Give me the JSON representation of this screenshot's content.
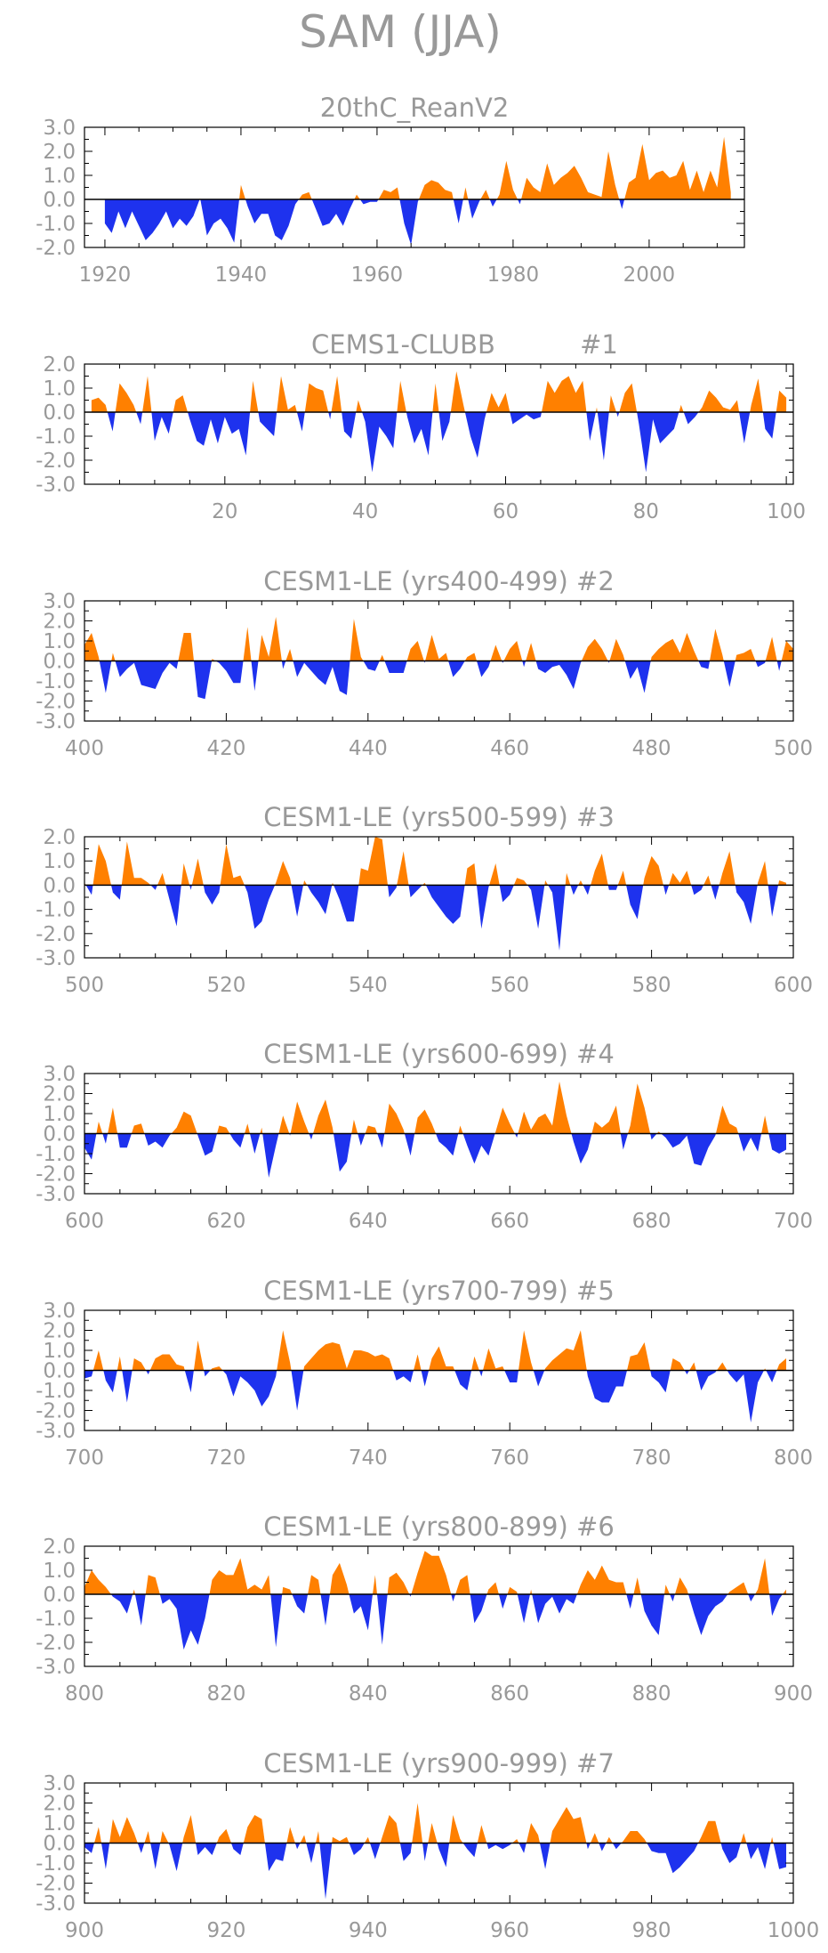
{
  "title": "SAM (JJA)",
  "colors": {
    "positive": "#ff8000",
    "negative": "#1e32ee",
    "axis": "#000000",
    "text": "#999999"
  },
  "chart_data": [
    {
      "type": "area",
      "title": "20thC_ReanV2",
      "ylim": [
        -2.0,
        3.0
      ],
      "yticks": [
        "3.0",
        "2.0",
        "1.0",
        "0.0",
        "-1.0",
        "-2.0"
      ],
      "xlim": [
        1917,
        2014
      ],
      "xticks": [
        1920,
        1940,
        1960,
        1980,
        2000
      ],
      "x_start": 1920,
      "values": [
        -1.0,
        -1.4,
        -0.5,
        -1.2,
        -0.5,
        -1.1,
        -1.7,
        -1.4,
        -1.0,
        -0.5,
        -1.2,
        -0.8,
        -1.1,
        -0.7,
        0.05,
        -1.5,
        -1.0,
        -0.8,
        -1.2,
        -1.8,
        0.6,
        -0.3,
        -1.0,
        -0.6,
        -0.6,
        -1.5,
        -1.7,
        -1.1,
        -0.2,
        0.2,
        0.3,
        -0.4,
        -1.1,
        -1.0,
        -0.6,
        -1.1,
        -0.4,
        0.2,
        -0.2,
        -0.1,
        -0.1,
        0.4,
        0.3,
        0.5,
        -1.0,
        -1.9,
        -0.1,
        0.6,
        0.8,
        0.7,
        0.4,
        0.3,
        -1.0,
        0.5,
        -0.8,
        -0.1,
        0.4,
        -0.3,
        0.2,
        1.6,
        0.4,
        -0.2,
        0.9,
        0.5,
        0.3,
        1.5,
        0.6,
        0.9,
        1.1,
        1.4,
        0.9,
        0.3,
        0.2,
        0.1,
        2.0,
        0.6,
        -0.4,
        0.7,
        0.9,
        2.3,
        0.8,
        1.1,
        1.2,
        0.9,
        1.0,
        1.6,
        0.4,
        1.2,
        0.3,
        1.2,
        0.5,
        2.6,
        0.3
      ],
      "positive_color": "#ff8000",
      "negative_color": "#1e32ee"
    },
    {
      "type": "area",
      "title": "CEMS1-CLUBB",
      "subtitle": "#1",
      "ylim": [
        -3.0,
        2.0
      ],
      "yticks": [
        "2.0",
        "1.0",
        "0.0",
        "-1.0",
        "-2.0",
        "-3.0"
      ],
      "xlim": [
        0,
        101
      ],
      "xticks": [
        20,
        40,
        60,
        80,
        100
      ],
      "x_start": 1,
      "values": [
        0.5,
        0.6,
        0.3,
        -0.8,
        1.2,
        0.8,
        0.3,
        -0.5,
        1.5,
        -1.2,
        -0.2,
        -0.9,
        0.5,
        0.7,
        -0.3,
        -1.2,
        -1.4,
        -0.3,
        -1.3,
        -0.2,
        -0.9,
        -0.7,
        -1.8,
        1.3,
        -0.4,
        -0.7,
        -1.0,
        1.5,
        0.1,
        0.3,
        -0.8,
        1.2,
        1.0,
        0.9,
        -0.3,
        1.5,
        -0.8,
        -1.1,
        0.5,
        -0.4,
        -2.5,
        -0.6,
        -1.0,
        -1.5,
        1.3,
        -0.2,
        -1.3,
        -0.7,
        -1.8,
        1.2,
        -1.2,
        -0.4,
        1.7,
        0.3,
        -1.0,
        -1.9,
        -0.3,
        0.8,
        0.2,
        0.8,
        -0.5,
        -0.3,
        -0.1,
        -0.3,
        -0.2,
        1.3,
        0.8,
        1.3,
        1.5,
        0.8,
        1.3,
        -1.2,
        0.2,
        -2.0,
        0.7,
        -0.2,
        0.8,
        1.2,
        -0.5,
        -2.5,
        -0.3,
        -1.3,
        -1.0,
        -0.7,
        0.3,
        -0.5,
        -0.2,
        0.2,
        0.9,
        0.6,
        0.2,
        0.1,
        0.5,
        -1.3,
        0.3,
        1.4,
        -0.7,
        -1.1,
        0.9,
        0.6
      ],
      "positive_color": "#ff8000",
      "negative_color": "#1e32ee"
    },
    {
      "type": "area",
      "title": "CESM1-LE (yrs400-499) #2",
      "ylim": [
        -3.0,
        3.0
      ],
      "yticks": [
        "3.0",
        "2.0",
        "1.0",
        "0.0",
        "-1.0",
        "-2.0",
        "-3.0"
      ],
      "xlim": [
        400,
        500
      ],
      "xticks": [
        400,
        420,
        440,
        460,
        480,
        500
      ],
      "x_start": 400,
      "values": [
        0.8,
        1.4,
        0.2,
        -1.6,
        0.4,
        -0.8,
        -0.4,
        -0.1,
        -1.2,
        -1.3,
        -1.4,
        -0.6,
        -0.1,
        -0.4,
        1.4,
        1.4,
        -1.8,
        -1.9,
        0.1,
        -0.1,
        -0.5,
        -1.1,
        -1.1,
        1.7,
        -1.5,
        1.3,
        0.2,
        2.2,
        -0.4,
        0.6,
        -0.8,
        -0.1,
        -0.5,
        -0.9,
        -1.2,
        -0.3,
        -1.5,
        -1.7,
        2.1,
        0.2,
        -0.4,
        -0.5,
        0.3,
        -0.6,
        -0.6,
        -0.6,
        0.6,
        1.0,
        -0.1,
        1.3,
        0.1,
        0.4,
        -0.8,
        -0.4,
        0.2,
        0.4,
        -0.8,
        -0.3,
        0.8,
        -0.1,
        0.6,
        1.0,
        -0.3,
        0.9,
        -0.4,
        -0.6,
        -0.3,
        -0.2,
        -0.7,
        -1.4,
        -0.1,
        0.7,
        1.1,
        0.6,
        -0.1,
        1.1,
        0.3,
        -0.9,
        -0.3,
        -1.6,
        0.2,
        0.6,
        0.9,
        1.1,
        0.4,
        1.4,
        0.5,
        -0.3,
        -0.4,
        1.6,
        0.3,
        -1.3,
        0.3,
        0.4,
        0.6,
        -0.3,
        -0.1,
        1.2,
        -0.5,
        1.0,
        0.6
      ],
      "positive_color": "#ff8000",
      "negative_color": "#1e32ee"
    },
    {
      "type": "area",
      "title": "CESM1-LE (yrs500-599) #3",
      "ylim": [
        -3.0,
        2.0
      ],
      "yticks": [
        "2.0",
        "1.0",
        "0.0",
        "-1.0",
        "-2.0",
        "-3.0"
      ],
      "xlim": [
        500,
        600
      ],
      "xticks": [
        500,
        520,
        540,
        560,
        580,
        600
      ],
      "x_start": 500,
      "values": [
        0.1,
        -0.4,
        1.7,
        1.0,
        -0.3,
        -0.6,
        1.8,
        0.3,
        0.3,
        0.1,
        -0.2,
        0.5,
        -0.6,
        -1.7,
        0.9,
        -0.2,
        1.1,
        -0.3,
        -0.8,
        -0.3,
        1.7,
        0.3,
        0.4,
        -0.3,
        -1.8,
        -1.5,
        -0.6,
        0.1,
        1.0,
        0.3,
        -1.3,
        0.2,
        -0.3,
        -0.7,
        -1.2,
        0.1,
        -0.6,
        -1.5,
        -1.5,
        0.7,
        0.6,
        2.0,
        1.9,
        -0.5,
        -0.1,
        1.4,
        -0.5,
        -0.2,
        0.1,
        -0.5,
        -0.9,
        -1.3,
        -1.6,
        -1.3,
        0.7,
        0.9,
        -1.8,
        -0.1,
        0.9,
        -0.7,
        -0.4,
        0.3,
        0.2,
        -0.2,
        -1.8,
        0.2,
        -0.3,
        -2.7,
        0.5,
        -0.4,
        0.2,
        -0.4,
        0.6,
        1.3,
        -0.2,
        -0.2,
        0.6,
        -0.8,
        -1.4,
        0.3,
        1.2,
        0.8,
        -0.4,
        0.5,
        0.1,
        0.6,
        -0.4,
        -0.2,
        0.4,
        -0.6,
        0.5,
        1.4,
        -0.3,
        -0.7,
        -1.6,
        0.1,
        1.0,
        -1.3,
        0.2,
        0.1
      ],
      "positive_color": "#ff8000",
      "negative_color": "#1e32ee"
    },
    {
      "type": "area",
      "title": "CESM1-LE (yrs600-699) #4",
      "ylim": [
        -3.0,
        3.0
      ],
      "yticks": [
        "3.0",
        "2.0",
        "1.0",
        "0.0",
        "-1.0",
        "-2.0",
        "-3.0"
      ],
      "xlim": [
        600,
        700
      ],
      "xticks": [
        600,
        620,
        640,
        660,
        680,
        700
      ],
      "x_start": 600,
      "values": [
        -0.7,
        -1.3,
        0.6,
        -0.5,
        1.3,
        -0.7,
        -0.7,
        0.4,
        0.5,
        -0.6,
        -0.4,
        -0.7,
        -0.1,
        0.3,
        1.1,
        0.9,
        -0.1,
        -1.1,
        -0.9,
        0.4,
        0.3,
        -0.3,
        -0.7,
        0.5,
        -1.0,
        0.3,
        -2.2,
        -0.6,
        0.9,
        -0.1,
        1.6,
        0.6,
        -0.3,
        0.9,
        1.7,
        0.3,
        -1.9,
        -1.4,
        0.7,
        -0.6,
        0.4,
        0.3,
        -0.7,
        1.5,
        1.0,
        0.2,
        -1.1,
        0.8,
        1.2,
        0.5,
        -0.4,
        -0.7,
        -1.1,
        0.4,
        -0.6,
        -1.5,
        -0.6,
        -1.1,
        0.1,
        1.3,
        0.5,
        -0.2,
        1.1,
        0.2,
        0.8,
        1.0,
        0.4,
        2.6,
        0.9,
        -0.4,
        -1.5,
        -0.8,
        0.6,
        0.3,
        0.6,
        1.4,
        -0.8,
        0.4,
        2.5,
        1.3,
        -0.3,
        0.1,
        -0.2,
        -0.7,
        -0.5,
        -0.1,
        -1.5,
        -1.6,
        -0.7,
        -0.1,
        1.4,
        0.5,
        0.3,
        -0.9,
        -0.2,
        -0.9,
        0.9,
        -0.8,
        -1.0,
        -0.8
      ],
      "positive_color": "#ff8000",
      "negative_color": "#1e32ee"
    },
    {
      "type": "area",
      "title": "CESM1-LE (yrs700-799) #5",
      "ylim": [
        -3.0,
        3.0
      ],
      "yticks": [
        "3.0",
        "2.0",
        "1.0",
        "0.0",
        "-1.0",
        "-2.0",
        "-3.0"
      ],
      "xlim": [
        700,
        800
      ],
      "xticks": [
        700,
        720,
        740,
        760,
        780,
        800
      ],
      "x_start": 700,
      "values": [
        -0.4,
        -0.3,
        1.0,
        -0.5,
        -1.1,
        0.7,
        -1.6,
        0.6,
        0.4,
        -0.2,
        0.6,
        0.8,
        0.8,
        0.3,
        0.2,
        -1.1,
        1.5,
        -0.3,
        0.1,
        0.2,
        -0.2,
        -1.3,
        -0.3,
        -0.6,
        -1.0,
        -1.8,
        -1.3,
        -0.3,
        2.0,
        0.4,
        -2.0,
        0.2,
        0.6,
        1.0,
        1.3,
        1.4,
        1.3,
        0.1,
        1.0,
        1.0,
        0.9,
        0.7,
        0.8,
        0.6,
        -0.5,
        -0.3,
        -0.6,
        0.8,
        -0.8,
        0.6,
        1.2,
        0.2,
        0.2,
        -0.7,
        -1.0,
        0.7,
        -0.3,
        1.1,
        0.1,
        0.2,
        -0.6,
        -0.6,
        2.0,
        0.4,
        -0.8,
        0.1,
        0.5,
        0.8,
        1.1,
        1.0,
        2.0,
        -0.3,
        -1.4,
        -1.6,
        -1.6,
        -0.8,
        -0.8,
        0.7,
        0.8,
        1.4,
        -0.3,
        -0.6,
        -1.1,
        0.6,
        0.4,
        -0.2,
        0.4,
        -1.0,
        -0.3,
        -0.1,
        0.4,
        -0.2,
        -0.6,
        -0.2,
        -2.6,
        -0.6,
        0.1,
        -0.6,
        0.3,
        0.6
      ],
      "positive_color": "#ff8000",
      "negative_color": "#1e32ee"
    },
    {
      "type": "area",
      "title": "CESM1-LE (yrs800-899) #6",
      "ylim": [
        -3.0,
        2.0
      ],
      "yticks": [
        "2.0",
        "1.0",
        "0.0",
        "-1.0",
        "-2.0",
        "-3.0"
      ],
      "xlim": [
        800,
        900
      ],
      "xticks": [
        800,
        820,
        840,
        860,
        880,
        900
      ],
      "x_start": 800,
      "values": [
        0.3,
        1.0,
        0.6,
        0.3,
        -0.1,
        -0.3,
        -0.8,
        0.2,
        -1.3,
        0.8,
        0.7,
        -0.4,
        -0.2,
        -0.6,
        -2.3,
        -1.5,
        -2.1,
        -1.0,
        0.6,
        1.0,
        0.8,
        0.8,
        1.5,
        0.2,
        0.4,
        0.2,
        0.8,
        -2.2,
        0.3,
        0.2,
        -0.5,
        -0.8,
        0.8,
        0.6,
        -1.3,
        0.8,
        1.3,
        0.4,
        -0.8,
        -0.5,
        -1.5,
        0.8,
        -2.1,
        0.7,
        0.9,
        0.5,
        -0.1,
        0.9,
        1.8,
        1.6,
        1.6,
        0.8,
        -0.3,
        0.6,
        0.8,
        -1.2,
        -0.7,
        0.2,
        0.5,
        -0.6,
        0.3,
        0.1,
        -1.2,
        0.2,
        -1.2,
        -0.4,
        -0.1,
        -0.8,
        -0.2,
        -0.4,
        0.4,
        1.0,
        0.6,
        1.2,
        0.6,
        0.5,
        0.5,
        -0.6,
        0.7,
        -0.7,
        -1.3,
        -1.7,
        0.4,
        -0.3,
        0.7,
        0.2,
        -0.8,
        -1.7,
        -0.9,
        -0.5,
        -0.3,
        0.1,
        0.3,
        0.5,
        -0.3,
        0.2,
        1.5,
        -0.9,
        -0.2,
        0.2
      ],
      "positive_color": "#ff8000",
      "negative_color": "#1e32ee"
    },
    {
      "type": "area",
      "title": "CESM1-LE (yrs900-999) #7",
      "ylim": [
        -3.0,
        3.0
      ],
      "yticks": [
        "3.0",
        "2.0",
        "1.0",
        "0.0",
        "-1.0",
        "-2.0",
        "-3.0"
      ],
      "xlim": [
        900,
        1000
      ],
      "xticks": [
        900,
        920,
        940,
        960,
        980,
        1000
      ],
      "x_start": 900,
      "values": [
        -0.2,
        -0.5,
        0.8,
        -1.3,
        1.2,
        0.3,
        1.3,
        0.5,
        -0.5,
        0.6,
        -1.3,
        0.6,
        -0.1,
        -1.4,
        0.3,
        1.4,
        -0.6,
        -0.2,
        -0.6,
        0.3,
        0.7,
        -0.3,
        -0.6,
        0.8,
        1.4,
        1.2,
        -1.4,
        -0.8,
        -0.9,
        0.8,
        -0.3,
        0.4,
        -1.0,
        0.6,
        -2.8,
        0.3,
        0.1,
        0.3,
        -0.6,
        -0.3,
        0.3,
        -0.8,
        0.3,
        1.4,
        1.0,
        -0.9,
        -0.5,
        2.0,
        -0.9,
        1.0,
        -0.3,
        -1.2,
        1.4,
        0.2,
        -0.3,
        -0.7,
        0.9,
        -0.3,
        -0.1,
        -0.3,
        -0.1,
        0.2,
        -0.5,
        1.0,
        0.4,
        -1.3,
        0.6,
        1.2,
        1.8,
        1.2,
        1.3,
        -0.3,
        0.5,
        -0.4,
        0.3,
        -0.3,
        0.1,
        0.6,
        0.6,
        0.2,
        -0.4,
        -0.5,
        -0.5,
        -1.5,
        -1.2,
        -0.8,
        -0.4,
        0.3,
        1.1,
        1.1,
        -0.3,
        -1.0,
        -0.7,
        0.5,
        -0.8,
        -0.2,
        -1.3,
        0.3,
        -1.3,
        -1.2
      ],
      "positive_color": "#ff8000",
      "negative_color": "#1e32ee"
    }
  ]
}
